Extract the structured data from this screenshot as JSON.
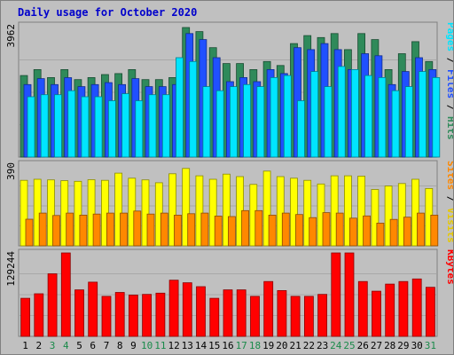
{
  "chart_data": {
    "type": "bar",
    "title": "Daily usage for October 2020",
    "categories": [
      "1",
      "2",
      "3",
      "4",
      "5",
      "6",
      "7",
      "8",
      "9",
      "10",
      "11",
      "12",
      "13",
      "14",
      "15",
      "16",
      "17",
      "18",
      "19",
      "20",
      "21",
      "22",
      "23",
      "24",
      "25",
      "26",
      "27",
      "28",
      "29",
      "30",
      "31"
    ],
    "weekend_days": [
      "3",
      "4",
      "10",
      "11",
      "17",
      "18",
      "24",
      "25",
      "31"
    ],
    "panels": [
      {
        "id": "requests",
        "scale_label": "3962",
        "ylim": [
          0,
          3962
        ],
        "series": [
          {
            "name": "Hits",
            "color": "#2f8a5a",
            "values": [
              2493,
              2677,
              2432,
              2677,
              2370,
              2432,
              2523,
              2554,
              2677,
              2370,
              2370,
              2432,
              3962,
              3838,
              3347,
              2861,
              2861,
              2677,
              2923,
              2800,
              3470,
              3716,
              3654,
              3777,
              3285,
              3777,
              3592,
              2677,
              3162,
              3530,
              2923
            ]
          },
          {
            "name": "Files",
            "color": "#2050ff",
            "values": [
              2216,
              2400,
              2216,
              2430,
              2154,
              2216,
              2277,
              2216,
              2400,
              2154,
              2154,
              2216,
              3777,
              3592,
              3039,
              2308,
              2431,
              2308,
              2677,
              2554,
              3347,
              3285,
              3470,
              3285,
              2677,
              3162,
              3100,
              2216,
              2616,
              3039,
              2677
            ]
          },
          {
            "name": "Pages",
            "color": "#00e5ff",
            "values": [
              1846,
              1908,
              1908,
              2031,
              1846,
              1846,
              1723,
              1938,
              1723,
              1908,
              1908,
              3039,
              2923,
              2154,
              2031,
              2154,
              2216,
              2154,
              2431,
              2493,
              1723,
              2616,
              2154,
              2770,
              2677,
              2493,
              2431,
              2031,
              2154,
              2616,
              2431
            ]
          }
        ]
      },
      {
        "id": "visitors",
        "scale_label": "390",
        "ylim": [
          0,
          390
        ],
        "series": [
          {
            "name": "Visits",
            "color": "#ffff00",
            "values": [
              320,
              325,
              322,
              318,
              315,
              323,
              320,
              355,
              330,
              322,
              308,
              352,
              378,
              342,
              325,
              350,
              338,
              300,
              365,
              338,
              330,
              320,
              302,
              342,
              342,
              340,
              275,
              292,
              304,
              325,
              280
            ]
          },
          {
            "name": "Sites",
            "color": "#ff8800",
            "values": [
              130,
              160,
              148,
              160,
              150,
              155,
              160,
              160,
              170,
              155,
              160,
              150,
              157,
              160,
              145,
              143,
              172,
              172,
              150,
              160,
              153,
              138,
              162,
              160,
              135,
              146,
              111,
              129,
              140,
              160,
              150
            ]
          }
        ]
      },
      {
        "id": "volume",
        "scale_label": "129244",
        "ylim": [
          0,
          129244
        ],
        "series": [
          {
            "name": "KBytes",
            "color": "#ff0000",
            "values": [
              59000,
              66000,
              97000,
              129244,
              72000,
              84000,
              62000,
              68000,
              64000,
              65000,
              67000,
              87000,
              83000,
              77000,
              59000,
              72000,
              72000,
              62000,
              85000,
              71000,
              62000,
              62000,
              65000,
              129244,
              129244,
              85000,
              70000,
              81000,
              85000,
              89000,
              76000
            ]
          }
        ]
      }
    ]
  }
}
